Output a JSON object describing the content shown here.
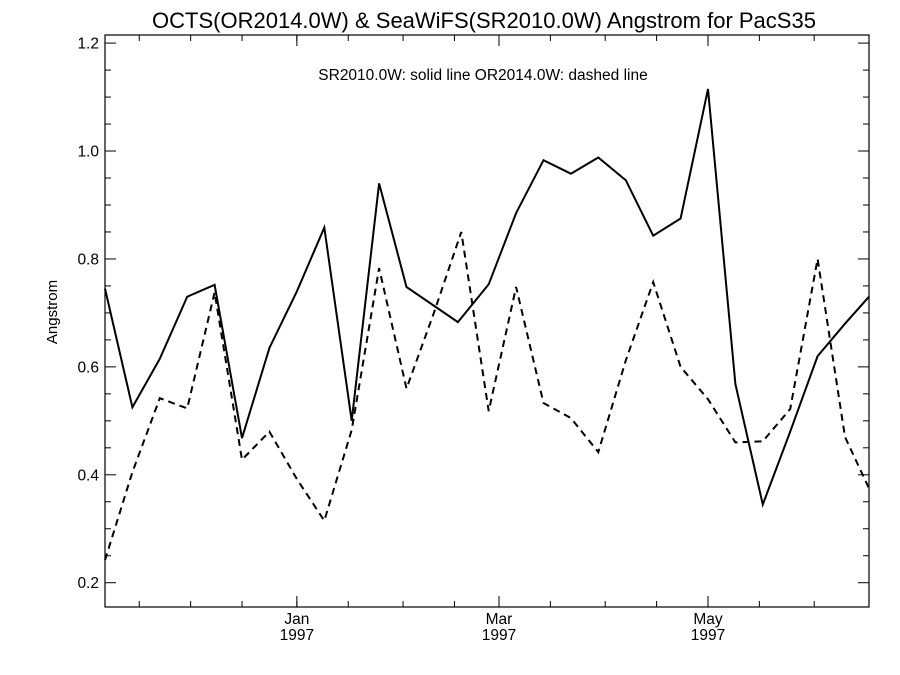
{
  "chart_data": {
    "type": "line",
    "title": "OCTS(OR2014.0W) & SeaWiFS(SR2010.0W)  Angstrom for PacS35",
    "annotation": "SR2010.0W: solid line   OR2014.0W: dashed line",
    "xlabel": "",
    "ylabel": "Angstrom",
    "ylim": [
      0.155,
      1.215
    ],
    "yticks": [
      0.2,
      0.4,
      0.6,
      0.8,
      1.0,
      1.2
    ],
    "yticks_minor_step": 0.05,
    "x_ticks_minor": [
      "1996-11-16",
      "1996-12-01",
      "1996-12-16",
      "1997-01-01",
      "1997-01-16",
      "1997-02-01",
      "1997-02-16",
      "1997-03-01",
      "1997-03-16",
      "1997-04-01",
      "1997-04-16",
      "1997-05-01",
      "1997-05-16",
      "1997-06-01"
    ],
    "xlim": [
      "1996-11-06",
      "1997-06-17"
    ],
    "x_ticks": [
      {
        "date": "1997-01-01",
        "month": "Jan",
        "year": "1997"
      },
      {
        "date": "1997-03-01",
        "month": "Mar",
        "year": "1997"
      },
      {
        "date": "1997-05-01",
        "month": "May",
        "year": "1997"
      }
    ],
    "grid": false,
    "x": [
      "1996-11-06",
      "1996-11-14",
      "1996-11-22",
      "1996-11-30",
      "1996-12-08",
      "1996-12-16",
      "1996-12-24",
      "1997-01-01",
      "1997-01-09",
      "1997-01-17",
      "1997-01-25",
      "1997-02-02",
      "1997-02-10",
      "1997-02-18",
      "1997-02-26",
      "1997-03-06",
      "1997-03-14",
      "1997-03-22",
      "1997-03-30",
      "1997-04-07",
      "1997-04-15",
      "1997-04-23",
      "1997-05-01",
      "1997-05-09",
      "1997-05-17",
      "1997-05-25",
      "1997-06-02",
      "1997-06-10",
      "1997-06-17"
    ],
    "series": [
      {
        "name": "SR2010.0W",
        "style": "solid",
        "x": [
          "1996-11-06",
          "1996-11-14",
          "1996-11-22",
          "1996-11-30",
          "1996-12-08",
          "1996-12-16",
          "1996-12-24",
          "1997-01-01",
          "1997-01-09",
          "1997-01-17",
          "1997-01-25",
          "1997-02-02",
          "1997-02-17",
          "1997-02-26",
          "1997-03-06",
          "1997-03-14",
          "1997-03-22",
          "1997-03-30",
          "1997-04-07",
          "1997-04-15",
          "1997-04-23",
          "1997-05-01",
          "1997-05-09",
          "1997-05-17",
          "1997-05-25",
          "1997-06-02",
          "1997-06-10",
          "1997-06-17"
        ],
        "values": [
          0.745,
          0.525,
          0.615,
          0.73,
          0.752,
          0.468,
          0.635,
          0.74,
          0.858,
          0.5,
          0.94,
          0.748,
          0.683,
          0.753,
          0.885,
          0.983,
          0.958,
          0.988,
          0.946,
          0.843,
          0.875,
          1.115,
          0.568,
          0.345,
          0.48,
          0.62,
          0.68,
          0.73
        ]
      },
      {
        "name": "OR2014.0W",
        "style": "dashed",
        "x": [
          "1996-11-06",
          "1996-11-14",
          "1996-11-22",
          "1996-11-30",
          "1996-12-08",
          "1996-12-16",
          "1996-12-24",
          "1997-01-01",
          "1997-01-09",
          "1997-01-17",
          "1997-01-25",
          "1997-02-02",
          "1997-02-10",
          "1997-02-18",
          "1997-02-26",
          "1997-03-06",
          "1997-03-14",
          "1997-03-22",
          "1997-03-30",
          "1997-04-07",
          "1997-04-15",
          "1997-04-23",
          "1997-05-01",
          "1997-05-09",
          "1997-05-17",
          "1997-05-25",
          "1997-06-02",
          "1997-06-10",
          "1997-06-17"
        ],
        "values": [
          0.242,
          0.405,
          0.542,
          0.523,
          0.738,
          0.428,
          0.48,
          0.392,
          0.315,
          0.483,
          0.783,
          0.56,
          0.7,
          0.85,
          0.518,
          0.748,
          0.533,
          0.505,
          0.442,
          0.612,
          0.757,
          0.6,
          0.54,
          0.46,
          0.462,
          0.522,
          0.8,
          0.47,
          0.375
        ]
      }
    ]
  }
}
